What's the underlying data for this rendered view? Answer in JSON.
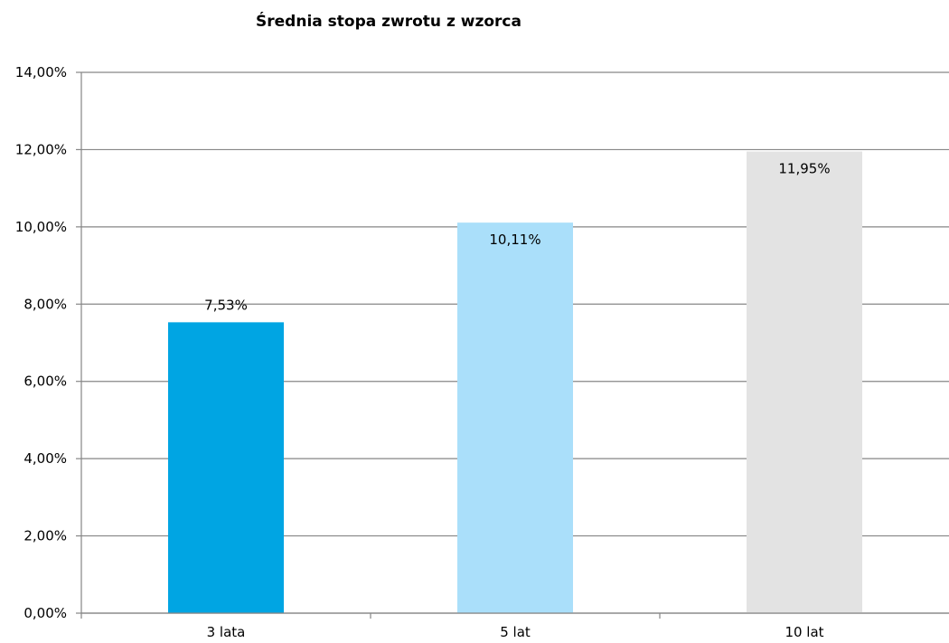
{
  "chart_data": {
    "type": "bar",
    "title": "Średnia stopa zwrotu z wzorca",
    "categories": [
      "3 lata",
      "5 lat",
      "10 lat"
    ],
    "values": [
      7.53,
      10.11,
      11.95
    ],
    "data_labels": [
      "7,53%",
      "10,11%",
      "11,95%"
    ],
    "ylim": [
      0,
      14
    ],
    "y_ticks": [
      0,
      2,
      4,
      6,
      8,
      10,
      12,
      14
    ],
    "y_tick_labels": [
      "0,00%",
      "2,00%",
      "4,00%",
      "6,00%",
      "8,00%",
      "10,00%",
      "12,00%",
      "14,00%"
    ],
    "bar_colors": [
      "#00a5e3",
      "#aadffa",
      "#e3e3e3"
    ],
    "grid": true,
    "legend": "none"
  }
}
